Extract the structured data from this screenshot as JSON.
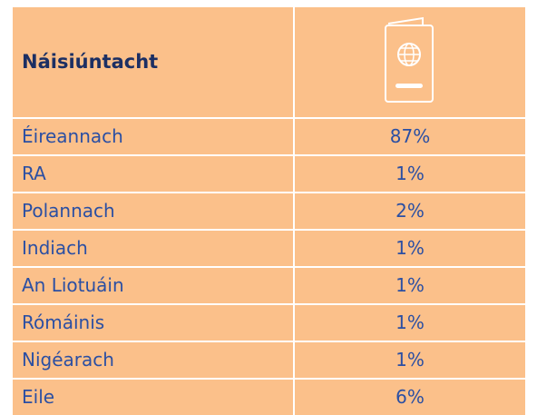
{
  "table": {
    "header": [
      "Náisiúntacht"
    ],
    "rows": [
      [
        "Éireannach",
        "87%"
      ],
      [
        "RA",
        "1%"
      ],
      [
        "Polannach",
        "2%"
      ],
      [
        "Indiach",
        "1%"
      ],
      [
        "An Liotuáin",
        "1%"
      ],
      [
        "Rómáinis",
        "1%"
      ],
      [
        "Nigéarach",
        "1%"
      ],
      [
        "Eile",
        "6%"
      ]
    ]
  }
}
